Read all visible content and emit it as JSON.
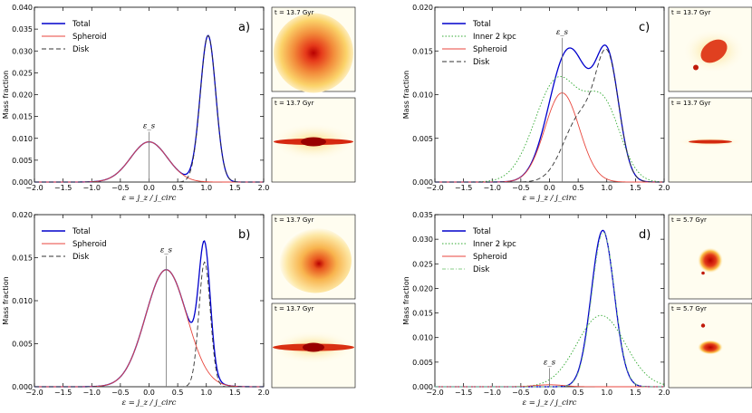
{
  "chart_data": [
    {
      "id": "a",
      "type": "line",
      "panel_label": "a)",
      "xlim": [
        -2.0,
        2.0
      ],
      "ylim": [
        0,
        0.04
      ],
      "xticks": [
        "−2.0",
        "−1.5",
        "−1.0",
        "−0.5",
        "0.0",
        "0.5",
        "1.0",
        "1.5",
        "2.0"
      ],
      "yticks": [
        "0.000",
        "0.005",
        "0.010",
        "0.015",
        "0.020",
        "0.025",
        "0.030",
        "0.035",
        "0.040"
      ],
      "ylabel": "Mass fraction",
      "xlabel": "ε = j_z / j_circ",
      "spheroid_peak": {
        "x": 0.0,
        "label": "ε_s",
        "line_top": 0.0115
      },
      "legend": [
        "Total",
        "Spheroid",
        "Disk"
      ],
      "series": [
        {
          "name": "Total",
          "color": "#0000cc",
          "style": "solid",
          "components": [
            {
              "a": 0.0092,
              "mu": 0.0,
              "sigma": 0.32
            },
            {
              "a": 0.0335,
              "mu": 1.03,
              "sigma": 0.135
            }
          ]
        },
        {
          "name": "Spheroid",
          "color": "#e8463c",
          "style": "solid",
          "components": [
            {
              "a": 0.0092,
              "mu": 0.0,
              "sigma": 0.32
            }
          ]
        },
        {
          "name": "Disk",
          "color": "#333333",
          "style": "dashed",
          "components": [
            {
              "a": 0.0335,
              "mu": 1.03,
              "sigma": 0.135
            }
          ]
        }
      ],
      "images": [
        "t = 13.7 Gyr",
        "t = 13.7 Gyr"
      ]
    },
    {
      "id": "b",
      "type": "line",
      "panel_label": "b)",
      "xlim": [
        -2.0,
        2.0
      ],
      "ylim": [
        0,
        0.02
      ],
      "xticks": [
        "−2.0",
        "−1.5",
        "−1.0",
        "−0.5",
        "0.0",
        "0.5",
        "1.0",
        "1.5",
        "2.0"
      ],
      "yticks": [
        "0.000",
        "0.005",
        "0.010",
        "0.015",
        "0.020"
      ],
      "ylabel": "Mass fraction",
      "xlabel": "ε = j_z / j_circ",
      "spheroid_peak": {
        "x": 0.3,
        "label": "ε_s",
        "line_top": 0.0152
      },
      "legend": [
        "Total",
        "Spheroid",
        "Disk"
      ],
      "series": [
        {
          "name": "Total",
          "color": "#0000cc",
          "style": "solid",
          "components": [
            {
              "a": 0.0136,
              "mu": 0.3,
              "sigma": 0.36
            },
            {
              "a": 0.0145,
              "mu": 0.97,
              "sigma": 0.1
            }
          ]
        },
        {
          "name": "Spheroid",
          "color": "#e8463c",
          "style": "solid",
          "components": [
            {
              "a": 0.0136,
              "mu": 0.3,
              "sigma": 0.36
            }
          ]
        },
        {
          "name": "Disk",
          "color": "#333333",
          "style": "dashed",
          "components": [
            {
              "a": 0.0145,
              "mu": 0.97,
              "sigma": 0.1
            }
          ]
        }
      ],
      "images": [
        "t = 13.7 Gyr",
        "t = 13.7 Gyr"
      ]
    },
    {
      "id": "c",
      "type": "line",
      "panel_label": "c)",
      "xlim": [
        -2.0,
        2.0
      ],
      "ylim": [
        0,
        0.02
      ],
      "xticks": [
        "−2.0",
        "−1.5",
        "−1.0",
        "−0.5",
        "0.0",
        "0.5",
        "1.0",
        "1.5",
        "2.0"
      ],
      "yticks": [
        "0.000",
        "0.005",
        "0.010",
        "0.015",
        "0.020"
      ],
      "ylabel": "Mass fraction",
      "xlabel": "ε = j_z / j_circ",
      "spheroid_peak": {
        "x": 0.22,
        "label": "ε_s",
        "line_top": 0.0165
      },
      "legend": [
        "Total",
        "Inner 2 kpc",
        "Spheroid",
        "Disk"
      ],
      "series": [
        {
          "name": "Total",
          "color": "#0000cc",
          "style": "solid",
          "components": [
            {
              "a": 0.0102,
              "mu": 0.22,
              "sigma": 0.3
            },
            {
              "a": 0.0075,
              "mu": 0.55,
              "sigma": 0.3
            },
            {
              "a": 0.0128,
              "mu": 1.02,
              "sigma": 0.2
            }
          ]
        },
        {
          "name": "Inner 2 kpc",
          "color": "#33aa33",
          "style": "dotted",
          "components": [
            {
              "a": 0.0118,
              "mu": 0.15,
              "sigma": 0.4
            },
            {
              "a": 0.0082,
              "mu": 0.95,
              "sigma": 0.3
            }
          ]
        },
        {
          "name": "Spheroid",
          "color": "#e8463c",
          "style": "solid",
          "components": [
            {
              "a": 0.0102,
              "mu": 0.22,
              "sigma": 0.3
            }
          ]
        },
        {
          "name": "Disk",
          "color": "#333333",
          "style": "dashed",
          "components": [
            {
              "a": 0.0075,
              "mu": 0.55,
              "sigma": 0.3
            },
            {
              "a": 0.0128,
              "mu": 1.02,
              "sigma": 0.2
            }
          ]
        }
      ],
      "images": [
        "t = 13.7 Gyr",
        "t = 13.7 Gyr"
      ]
    },
    {
      "id": "d",
      "type": "line",
      "panel_label": "d)",
      "xlim": [
        -2.0,
        2.0
      ],
      "ylim": [
        0,
        0.035
      ],
      "xticks": [
        "−2.0",
        "−1.5",
        "−1.0",
        "−0.5",
        "0.0",
        "0.5",
        "1.0",
        "1.5",
        "2.0"
      ],
      "yticks": [
        "0.000",
        "0.005",
        "0.010",
        "0.015",
        "0.020",
        "0.025",
        "0.030",
        "0.035"
      ],
      "ylabel": "Mass fraction",
      "xlabel": "ε = j_z / j_circ",
      "spheroid_peak": {
        "x": 0.0,
        "label": "ε_s",
        "line_top": 0.0038
      },
      "legend": [
        "Total",
        "Inner 2 kpc",
        "Spheroid",
        "Disk"
      ],
      "series": [
        {
          "name": "Total",
          "color": "#0000cc",
          "style": "solid",
          "components": [
            {
              "a": 0.0318,
              "mu": 0.93,
              "sigma": 0.2
            }
          ]
        },
        {
          "name": "Inner 2 kpc",
          "color": "#33aa33",
          "style": "dotted",
          "components": [
            {
              "a": 0.0145,
              "mu": 0.9,
              "sigma": 0.42
            }
          ]
        },
        {
          "name": "Spheroid",
          "color": "#e8463c",
          "style": "solid",
          "components": [
            {
              "a": 0.0004,
              "mu": 0.0,
              "sigma": 0.25
            }
          ]
        },
        {
          "name": "Disk",
          "color": "#88cc88",
          "style": "dashdot",
          "components": [
            {
              "a": 0.0314,
              "mu": 0.94,
              "sigma": 0.2
            }
          ]
        }
      ],
      "images": [
        "t = 5.7 Gyr",
        "t = 5.7 Gyr"
      ]
    }
  ]
}
